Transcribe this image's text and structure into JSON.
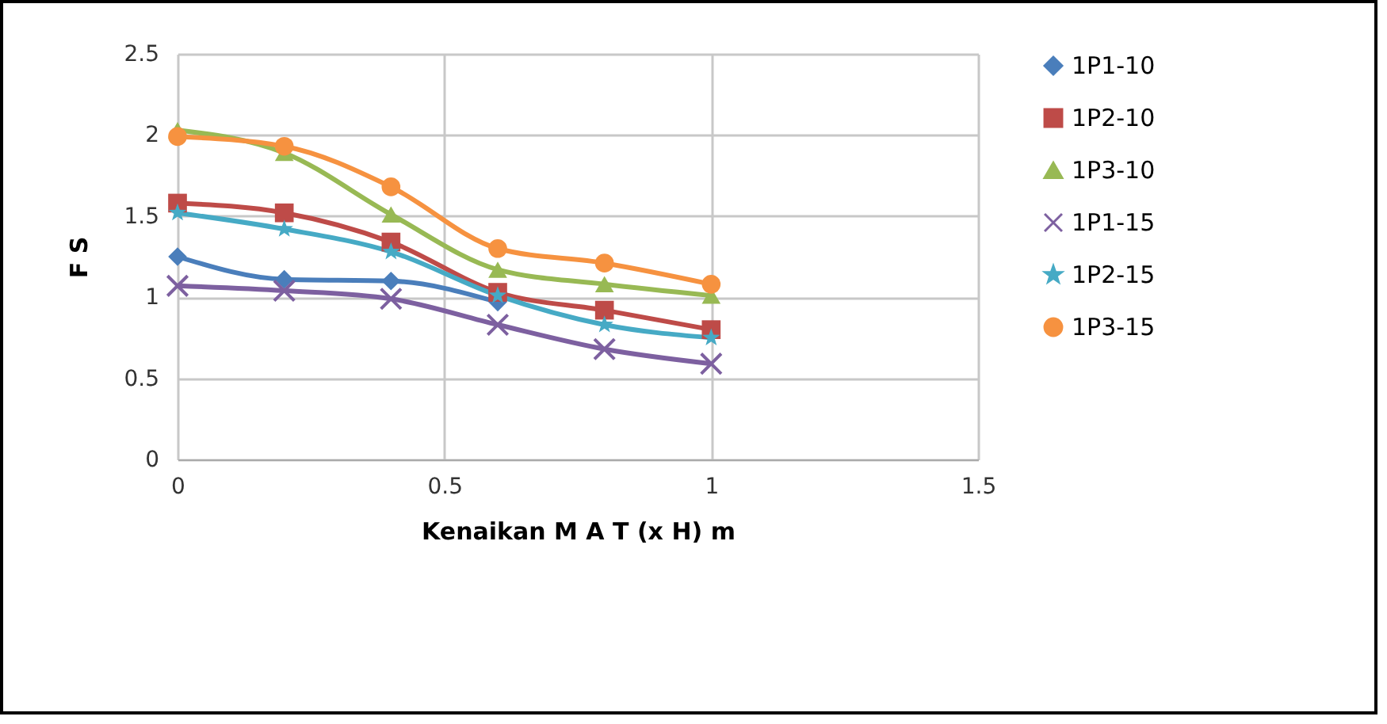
{
  "chart_data": {
    "type": "line",
    "xlabel": "Kenaikan M A T (x H) m",
    "ylabel": "F S",
    "x": [
      0,
      0.2,
      0.4,
      0.6,
      0.8,
      1.0
    ],
    "xlim": [
      0,
      1.5
    ],
    "xticks": [
      0,
      0.5,
      1,
      1.5
    ],
    "ylim": [
      0,
      2.5
    ],
    "yticks": [
      0,
      0.5,
      1,
      1.5,
      2,
      2.5
    ],
    "grid": true,
    "legend": "right",
    "series": [
      {
        "name": "1P1-10",
        "color": "#4a7ebb",
        "marker": "diamond",
        "values": [
          1.25,
          1.11,
          1.1,
          0.97,
          null,
          null
        ]
      },
      {
        "name": "1P2-10",
        "color": "#be4b48",
        "marker": "square",
        "values": [
          1.58,
          1.52,
          1.34,
          1.03,
          0.92,
          0.8
        ]
      },
      {
        "name": "1P3-10",
        "color": "#98b954",
        "marker": "triangle",
        "values": [
          2.03,
          1.89,
          1.51,
          1.17,
          1.08,
          1.01
        ]
      },
      {
        "name": "1P1-15",
        "color": "#7d60a0",
        "marker": "cross",
        "values": [
          1.07,
          1.04,
          0.99,
          0.83,
          0.68,
          0.59
        ]
      },
      {
        "name": "1P2-15",
        "color": "#46aac5",
        "marker": "star",
        "values": [
          1.52,
          1.42,
          1.28,
          1.01,
          0.83,
          0.75
        ]
      },
      {
        "name": "1P3-15",
        "color": "#f69240",
        "marker": "circle",
        "values": [
          1.99,
          1.93,
          1.68,
          1.3,
          1.21,
          1.08
        ]
      }
    ]
  }
}
